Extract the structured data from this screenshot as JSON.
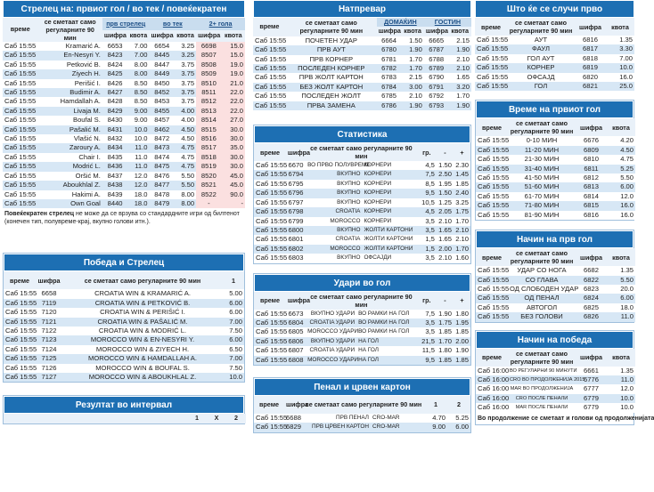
{
  "scorer": {
    "title": "Стрелец на: првиот гол / во тек / повеќекратен",
    "head": {
      "vreme": "време",
      "desc": "се сметаат само регуларните 90 мин",
      "g1": "прв стрелец",
      "g2": "во тек",
      "g3": "2+ гола"
    },
    "sub": {
      "s1": "шифра",
      "k1": "квота",
      "s2": "шифра",
      "k2": "квота",
      "s3": "шифра",
      "k3": "квота"
    },
    "rows": [
      {
        "t": "Саб 15:55",
        "n": "Kramarić A.",
        "a": "6653",
        "b": "7.00",
        "c": "6654",
        "d": "3.25",
        "e": "6698",
        "f": "15.0"
      },
      {
        "t": "Саб 15:55",
        "n": "En-Nesyri Y.",
        "a": "8423",
        "b": "7.00",
        "c": "8445",
        "d": "3.25",
        "e": "8507",
        "f": "15.0"
      },
      {
        "t": "Саб 15:55",
        "n": "Petković B.",
        "a": "8424",
        "b": "8.00",
        "c": "8447",
        "d": "3.75",
        "e": "8508",
        "f": "19.0"
      },
      {
        "t": "Саб 15:55",
        "n": "Ziyech H.",
        "a": "8425",
        "b": "8.00",
        "c": "8449",
        "d": "3.75",
        "e": "8509",
        "f": "19.0"
      },
      {
        "t": "Саб 15:55",
        "n": "Perišić I.",
        "a": "8426",
        "b": "8.50",
        "c": "8450",
        "d": "3.75",
        "e": "8510",
        "f": "21.0"
      },
      {
        "t": "Саб 15:55",
        "n": "Budimir A.",
        "a": "8427",
        "b": "8.50",
        "c": "8452",
        "d": "3.75",
        "e": "8511",
        "f": "22.0"
      },
      {
        "t": "Саб 15:55",
        "n": "Hamdallah A.",
        "a": "8428",
        "b": "8.50",
        "c": "8453",
        "d": "3.75",
        "e": "8512",
        "f": "22.0"
      },
      {
        "t": "Саб 15:55",
        "n": "Livaja M.",
        "a": "8429",
        "b": "9.00",
        "c": "8455",
        "d": "4.00",
        "e": "8513",
        "f": "22.0"
      },
      {
        "t": "Саб 15:55",
        "n": "Boufal S.",
        "a": "8430",
        "b": "9.00",
        "c": "8457",
        "d": "4.00",
        "e": "8514",
        "f": "27.0"
      },
      {
        "t": "Саб 15:55",
        "n": "Pašalić M.",
        "a": "8431",
        "b": "10.0",
        "c": "8462",
        "d": "4.50",
        "e": "8515",
        "f": "30.0"
      },
      {
        "t": "Саб 15:55",
        "n": "Vlašić N.",
        "a": "8432",
        "b": "10.0",
        "c": "8472",
        "d": "4.50",
        "e": "8516",
        "f": "30.0"
      },
      {
        "t": "Саб 15:55",
        "n": "Zaroury A.",
        "a": "8434",
        "b": "11.0",
        "c": "8473",
        "d": "4.75",
        "e": "8517",
        "f": "35.0"
      },
      {
        "t": "Саб 15:55",
        "n": "Chair I.",
        "a": "8435",
        "b": "11.0",
        "c": "8474",
        "d": "4.75",
        "e": "8518",
        "f": "30.0"
      },
      {
        "t": "Саб 15:55",
        "n": "Modrić L.",
        "a": "8436",
        "b": "11.0",
        "c": "8475",
        "d": "4.75",
        "e": "8519",
        "f": "30.0"
      },
      {
        "t": "Саб 15:55",
        "n": "Oršić M.",
        "a": "8437",
        "b": "12.0",
        "c": "8476",
        "d": "5.50",
        "e": "8520",
        "f": "45.0"
      },
      {
        "t": "Саб 15:55",
        "n": "Aboukhlal Z.",
        "a": "8438",
        "b": "12.0",
        "c": "8477",
        "d": "5.50",
        "e": "8521",
        "f": "45.0"
      },
      {
        "t": "Саб 15:55",
        "n": "Hakimi A.",
        "a": "8439",
        "b": "18.0",
        "c": "8478",
        "d": "8.00",
        "e": "8522",
        "f": "90.0"
      },
      {
        "t": "Саб 15:55",
        "n": "Own Goal",
        "a": "8440",
        "b": "18.0",
        "c": "8479",
        "d": "8.00",
        "e": "-",
        "f": "-"
      }
    ],
    "note_bold": "Повеќекратен стрелец",
    "note_text": " не може да се врзува со стандардните игри од билтенот (конечен тип, полувреме-крај, вкупно голови итн.)."
  },
  "winscorer": {
    "title": "Победа и Стрелец",
    "head": {
      "vreme": "време",
      "sif": "шифра",
      "desc": "се сметаат само регуларните 90 мин",
      "one": "1"
    },
    "rows": [
      {
        "t": "Саб 15:55",
        "s": "6658",
        "d": "CROATIA WIN & KRAMARIĆ A.",
        "k": "5.00"
      },
      {
        "t": "Саб 15:55",
        "s": "7119",
        "d": "CROATIA WIN & PETKOVIĆ B.",
        "k": "6.00"
      },
      {
        "t": "Саб 15:55",
        "s": "7120",
        "d": "CROATIA WIN & PERIŠIĆ I.",
        "k": "6.00"
      },
      {
        "t": "Саб 15:55",
        "s": "7121",
        "d": "CROATIA WIN & PAŠALIĆ M.",
        "k": "7.00"
      },
      {
        "t": "Саб 15:55",
        "s": "7122",
        "d": "CROATIA WIN & MODRIĆ L.",
        "k": "7.50"
      },
      {
        "t": "Саб 15:55",
        "s": "7123",
        "d": "MOROCCO WIN & EN-NESYRI Y.",
        "k": "6.00"
      },
      {
        "t": "Саб 15:55",
        "s": "7124",
        "d": "MOROCCO WIN & ZIYECH H.",
        "k": "6.50"
      },
      {
        "t": "Саб 15:55",
        "s": "7125",
        "d": "MOROCCO WIN & HAMDALLAH A.",
        "k": "7.00"
      },
      {
        "t": "Саб 15:55",
        "s": "7126",
        "d": "MOROCCO WIN & BOUFAL S.",
        "k": "7.50"
      },
      {
        "t": "Саб 15:55",
        "s": "7127",
        "d": "MOROCCO WIN & ABOUKHLAL Z.",
        "k": "10.0"
      }
    ]
  },
  "interval": {
    "title": "Резултат во интервал",
    "h1": "1",
    "hx": "X",
    "h2": "2"
  },
  "match": {
    "title": "Натпревар",
    "head": {
      "vreme": "време",
      "desc": "се сметаат само регуларните 90 мин",
      "home": "ДОМАЌИН",
      "away": "ГОСТИН"
    },
    "sub": {
      "s1": "шифра",
      "k1": "квота",
      "s2": "шифра",
      "k2": "квота"
    },
    "rows": [
      {
        "t": "Саб 15:55",
        "d": "ПОЧЕТЕН УДАР",
        "a": "6664",
        "b": "1.50",
        "c": "6665",
        "e": "2.15"
      },
      {
        "t": "Саб 15:55",
        "d": "ПРВ АУТ",
        "a": "6780",
        "b": "1.90",
        "c": "6787",
        "e": "1.90"
      },
      {
        "t": "Саб 15:55",
        "d": "ПРВ КОРНЕР",
        "a": "6781",
        "b": "1.70",
        "c": "6788",
        "e": "2.10"
      },
      {
        "t": "Саб 15:55",
        "d": "ПОСЛЕДЕН КОРНЕР",
        "a": "6782",
        "b": "1.70",
        "c": "6789",
        "e": "2.10"
      },
      {
        "t": "Саб 15:55",
        "d": "ПРВ ЖОЛТ КАРТОН",
        "a": "6783",
        "b": "2.15",
        "c": "6790",
        "e": "1.65"
      },
      {
        "t": "Саб 15:55",
        "d": "БЕЗ ЖОЛТ КАРТОН",
        "a": "6784",
        "b": "3.00",
        "c": "6791",
        "e": "3.20"
      },
      {
        "t": "Саб 15:55",
        "d": "ПОСЛЕДЕН ЖОЛТ",
        "a": "6785",
        "b": "2.10",
        "c": "6792",
        "e": "1.70"
      },
      {
        "t": "Саб 15:55",
        "d": "ПРВА ЗАМЕНА",
        "a": "6786",
        "b": "1.90",
        "c": "6793",
        "e": "1.90"
      }
    ]
  },
  "stats": {
    "title": "Статистика",
    "head": {
      "vreme": "време",
      "sif": "шифра",
      "desc": "се сметаат само регуларните 90 мин",
      "gr": "гр.",
      "minus": "-",
      "plus": "+"
    },
    "rows": [
      {
        "t": "Саб 15:55",
        "s": "6670",
        "a": "ВО ПРВО ПОЛУВРЕМЕ",
        "b": "КОРНЕРИ",
        "g": "4,5",
        "m": "1.50",
        "p": "2.30"
      },
      {
        "t": "Саб 15:55",
        "s": "6794",
        "a": "ВКУПНО",
        "b": "КОРНЕРИ",
        "g": "7,5",
        "m": "2.50",
        "p": "1.45"
      },
      {
        "t": "Саб 15:55",
        "s": "6795",
        "a": "ВКУПНО",
        "b": "КОРНЕРИ",
        "g": "8,5",
        "m": "1.95",
        "p": "1.85"
      },
      {
        "t": "Саб 15:55",
        "s": "6796",
        "a": "ВКУПНО",
        "b": "КОРНЕРИ",
        "g": "9,5",
        "m": "1.50",
        "p": "2.40"
      },
      {
        "t": "Саб 15:55",
        "s": "6797",
        "a": "ВКУПНО",
        "b": "КОРНЕРИ",
        "g": "10,5",
        "m": "1.25",
        "p": "3.25"
      },
      {
        "t": "Саб 15:55",
        "s": "6798",
        "a": "CROATIA",
        "b": "КОРНЕРИ",
        "g": "4,5",
        "m": "2.05",
        "p": "1.75"
      },
      {
        "t": "Саб 15:55",
        "s": "6799",
        "a": "MOROCCO",
        "b": "КОРНЕРИ",
        "g": "3,5",
        "m": "2.10",
        "p": "1.70"
      },
      {
        "t": "Саб 15:55",
        "s": "6800",
        "a": "ВКУПНО",
        "b": "ЖОЛТИ КАРТОНИ",
        "g": "3,5",
        "m": "1.65",
        "p": "2.10"
      },
      {
        "t": "Саб 15:55",
        "s": "6801",
        "a": "CROATIA",
        "b": "ЖОЛТИ КАРТОНИ",
        "g": "1,5",
        "m": "1.65",
        "p": "2.10"
      },
      {
        "t": "Саб 15:55",
        "s": "6802",
        "a": "MOROCCO",
        "b": "ЖОЛТИ КАРТОНИ",
        "g": "1,5",
        "m": "2.00",
        "p": "1.70"
      },
      {
        "t": "Саб 15:55",
        "s": "6803",
        "a": "ВКУПНО",
        "b": "ОФСАЈДИ",
        "g": "3,5",
        "m": "2.10",
        "p": "1.60"
      }
    ]
  },
  "shots": {
    "title": "Удари во гол",
    "head": {
      "vreme": "време",
      "sif": "шифра",
      "desc": "се сметаат само регуларните 90 мин",
      "gr": "гр.",
      "minus": "-",
      "plus": "+"
    },
    "rows": [
      {
        "t": "Саб 15:55",
        "s": "6673",
        "a": "ВКУПНО УДАРИ",
        "b": "ВО РАМКИ НА ГОЛ",
        "g": "7,5",
        "m": "1.90",
        "p": "1.80"
      },
      {
        "t": "Саб 15:55",
        "s": "6804",
        "a": "CROATIA УДАРИ",
        "b": "ВО РАМКИ НА ГОЛ",
        "g": "3,5",
        "m": "1.75",
        "p": "1.95"
      },
      {
        "t": "Саб 15:55",
        "s": "6805",
        "a": "MOROCCO УДАРИ",
        "b": "ВО РАМКИ НА ГОЛ",
        "g": "3,5",
        "m": "1.85",
        "p": "1.85"
      },
      {
        "t": "Саб 15:55",
        "s": "6806",
        "a": "ВКУПНО УДАРИ",
        "b": "НА ГОЛ",
        "g": "21,5",
        "m": "1.70",
        "p": "2.00"
      },
      {
        "t": "Саб 15:55",
        "s": "6807",
        "a": "CROATIA УДАРИ",
        "b": "НА ГОЛ",
        "g": "11,5",
        "m": "1.80",
        "p": "1.90"
      },
      {
        "t": "Саб 15:55",
        "s": "6808",
        "a": "MOROCCO УДАРИ",
        "b": "НА ГОЛ",
        "g": "9,5",
        "m": "1.85",
        "p": "1.85"
      }
    ]
  },
  "penalty": {
    "title": "Пенал и црвен картон",
    "head": {
      "vreme": "време",
      "sif": "шифра",
      "desc": "се сметаат само регуларните 90 мин",
      "one": "1",
      "two": "2"
    },
    "rows": [
      {
        "t": "Саб 15:55",
        "s": "6688",
        "a": "ПРВ ПЕНАЛ",
        "b": "CRO-MAR",
        "k1": "4.70",
        "k2": "5.25"
      },
      {
        "t": "Саб 15:55",
        "s": "6829",
        "a": "ПРВ ЦРВЕН КАРТОН",
        "b": "CRO-MAR",
        "k1": "9.00",
        "k2": "6.00"
      }
    ]
  },
  "first": {
    "title": "Што ќе се случи прво",
    "head": {
      "vreme": "време",
      "desc": "се сметаат само регуларните 90 мин",
      "sif": "шифра",
      "k": "квота"
    },
    "rows": [
      {
        "t": "Саб 15:55",
        "d": "АУТ",
        "s": "6816",
        "k": "1.35"
      },
      {
        "t": "Саб 15:55",
        "d": "ФАУЛ",
        "s": "6817",
        "k": "3.30"
      },
      {
        "t": "Саб 15:55",
        "d": "ГОЛ АУТ",
        "s": "6818",
        "k": "7.00"
      },
      {
        "t": "Саб 15:55",
        "d": "КОРНЕР",
        "s": "6819",
        "k": "10.0"
      },
      {
        "t": "Саб 15:55",
        "d": "ОФСАЈД",
        "s": "6820",
        "k": "16.0"
      },
      {
        "t": "Саб 15:55",
        "d": "ГОЛ",
        "s": "6821",
        "k": "25.0"
      }
    ]
  },
  "firstgoal": {
    "title": "Време на првиот гол",
    "head": {
      "vreme": "време",
      "desc": "се сметаат само регуларните 90 мин",
      "sif": "шифра",
      "k": "квота"
    },
    "rows": [
      {
        "t": "Саб 15:55",
        "d": "0-10 МИН",
        "s": "6676",
        "k": "4.20"
      },
      {
        "t": "Саб 15:55",
        "d": "11-20 МИН",
        "s": "6809",
        "k": "4.50"
      },
      {
        "t": "Саб 15:55",
        "d": "21-30 МИН",
        "s": "6810",
        "k": "4.75"
      },
      {
        "t": "Саб 15:55",
        "d": "31-40 МИН",
        "s": "6811",
        "k": "5.25"
      },
      {
        "t": "Саб 15:55",
        "d": "41-50 МИН",
        "s": "6812",
        "k": "5.50"
      },
      {
        "t": "Саб 15:55",
        "d": "51-60 МИН",
        "s": "6813",
        "k": "6.00"
      },
      {
        "t": "Саб 15:55",
        "d": "61-70 МИН",
        "s": "6814",
        "k": "12.0"
      },
      {
        "t": "Саб 15:55",
        "d": "71-80 МИН",
        "s": "6815",
        "k": "16.0"
      },
      {
        "t": "Саб 15:55",
        "d": "81-90 МИН",
        "s": "6816",
        "k": "16.0"
      }
    ]
  },
  "howfirst": {
    "title": "Начин на прв гол",
    "head": {
      "vreme": "време",
      "desc": "се сметаат само регуларните 90 мин",
      "sif": "шифра",
      "k": "квота"
    },
    "rows": [
      {
        "t": "Саб 15:55",
        "d": "УДАР СО НОГА",
        "s": "6682",
        "k": "1.35"
      },
      {
        "t": "Саб 15:55",
        "d": "СО ГЛАВА",
        "s": "6822",
        "k": "5.50"
      },
      {
        "t": "Саб 15:55",
        "d": "ОД СЛОБОДЕН УДАР",
        "s": "6823",
        "k": "20.0"
      },
      {
        "t": "Саб 15:55",
        "d": "ОД ПЕНАЛ",
        "s": "6824",
        "k": "6.00"
      },
      {
        "t": "Саб 15:55",
        "d": "АВТОГОЛ",
        "s": "6825",
        "k": "18.0"
      },
      {
        "t": "Саб 15:55",
        "d": "БЕЗ ГОЛОВИ",
        "s": "6826",
        "k": "11.0"
      }
    ]
  },
  "howwin": {
    "title": "Начин на победа",
    "head": {
      "vreme": "време",
      "desc": "се сметаат само регуларните 90 мин",
      "sif": "шифра",
      "k": "квота"
    },
    "rows": [
      {
        "t": "Саб 16:00",
        "d": "ВО РЕГУЛАРНИ 90 МИНУТИ",
        "s": "6661",
        "k": "1.35"
      },
      {
        "t": "Саб 16:00",
        "d": "CRO ВО ПРОДОЛЖЕНИЈА 2015",
        "s": "6776",
        "k": "11.0"
      },
      {
        "t": "Саб 16:00",
        "d": "MAR ВО ПРОДОЛЖЕНИЈА",
        "s": "6777",
        "k": "12.0"
      },
      {
        "t": "Саб 16:00",
        "d": "CRO ПОСЛЕ ПЕНАЛИ",
        "s": "6779",
        "k": "10.0"
      },
      {
        "t": "Саб 16:00",
        "d": "MAR ПОСЛЕ ПЕНАЛИ",
        "s": "6779",
        "k": "10.0"
      }
    ],
    "footer": "Во продолжение се сметаат и голови од продолженијата"
  },
  "colors": {
    "header_blue": "#1d6fb3",
    "stripe": "#d7e7f5",
    "pink": "#fbe0e0"
  }
}
